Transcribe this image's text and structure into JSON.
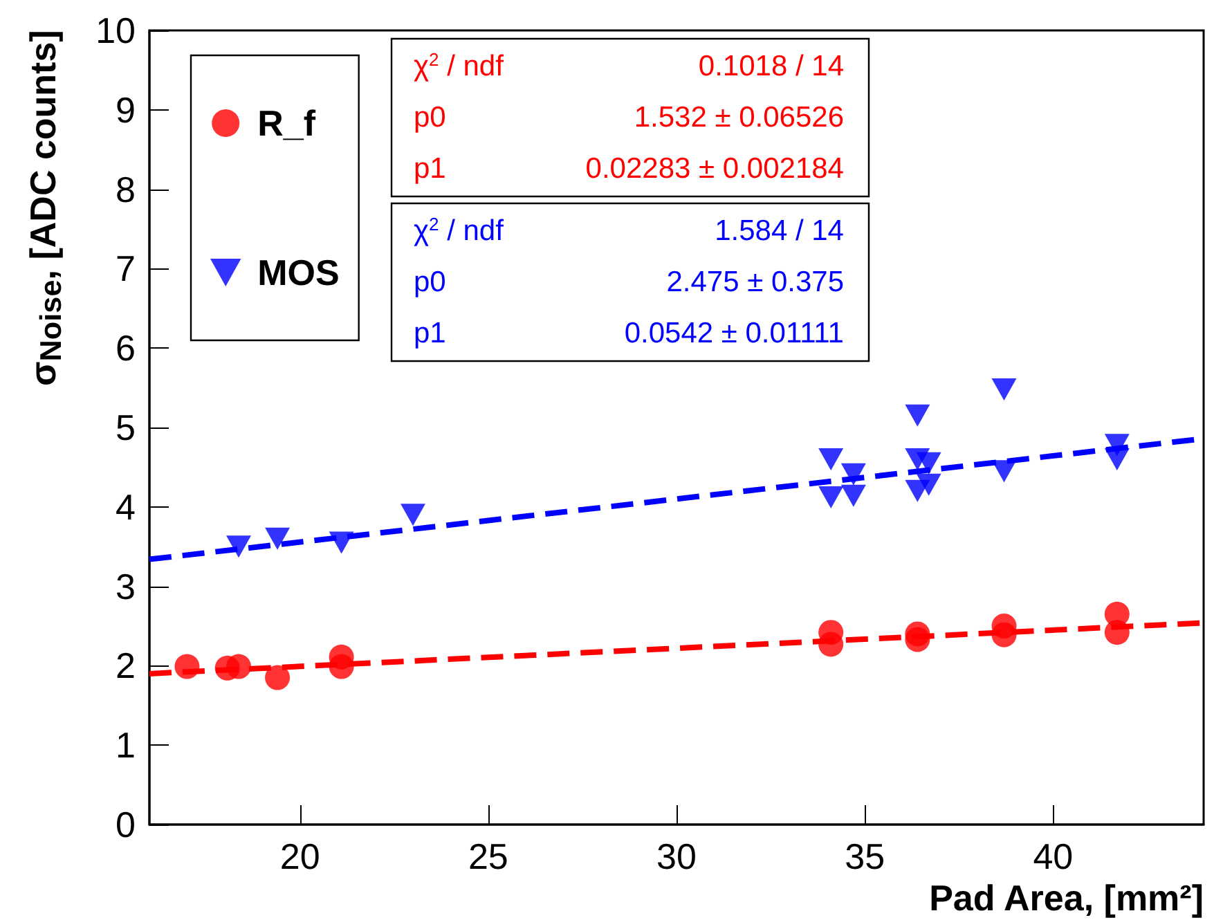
{
  "chart_data": {
    "type": "scatter",
    "xlabel": "Pad Area, [mm²]",
    "ylabel": "σ$_{Noise}$, [ADC counts]",
    "xlim": [
      16,
      44
    ],
    "ylim": [
      0,
      10
    ],
    "xticks": [
      20,
      25,
      30,
      35,
      40
    ],
    "yticks": [
      0,
      1,
      2,
      3,
      4,
      5,
      6,
      7,
      8,
      9,
      10
    ],
    "grid": false,
    "legend": "top left",
    "series": [
      {
        "name": "R_f",
        "color": "#ff0000",
        "marker": "circle",
        "x": [
          17.0,
          18.07,
          18.37,
          19.4,
          21.1,
          21.1,
          34.1,
          34.1,
          36.4,
          36.4,
          38.7,
          38.7,
          41.7,
          41.7
        ],
        "values": [
          1.99,
          1.97,
          1.99,
          1.85,
          2.11,
          1.99,
          2.42,
          2.27,
          2.4,
          2.33,
          2.5,
          2.39,
          2.65,
          2.42
        ]
      },
      {
        "name": "MOS",
        "color": "#0000ff",
        "marker": "triangle",
        "x": [
          18.37,
          19.4,
          21.1,
          23.0,
          34.1,
          34.1,
          34.7,
          34.7,
          36.4,
          36.4,
          36.4,
          36.7,
          36.7,
          38.7,
          38.7,
          41.7,
          41.7
        ],
        "values": [
          3.5,
          3.6,
          3.55,
          3.9,
          4.6,
          4.12,
          4.41,
          4.14,
          5.15,
          4.6,
          4.2,
          4.55,
          4.28,
          5.48,
          4.45,
          4.78,
          4.6
        ]
      },
      {
        "type": "line",
        "color": "#ff0000",
        "marker": "none",
        "line_style": "dashed",
        "x": [
          16,
          44
        ],
        "values": [
          1.9,
          2.54
        ]
      },
      {
        "type": "line",
        "color": "#0000ff",
        "marker": "none",
        "line_style": "dashed",
        "x": [
          16,
          44
        ],
        "values": [
          3.34,
          4.86
        ]
      }
    ],
    "annotations": [
      "χ$^{2}$ / ndf",
      "0.1018 / 14",
      "p0",
      "1.532 ± 0.06526",
      "p1",
      "0.02283 ± 0.002184",
      "χ$^{2}$ / ndf",
      "1.584 / 14",
      "p0",
      "2.475 ± 0.375",
      "p1",
      "0.0542 ± 0.01111"
    ]
  }
}
